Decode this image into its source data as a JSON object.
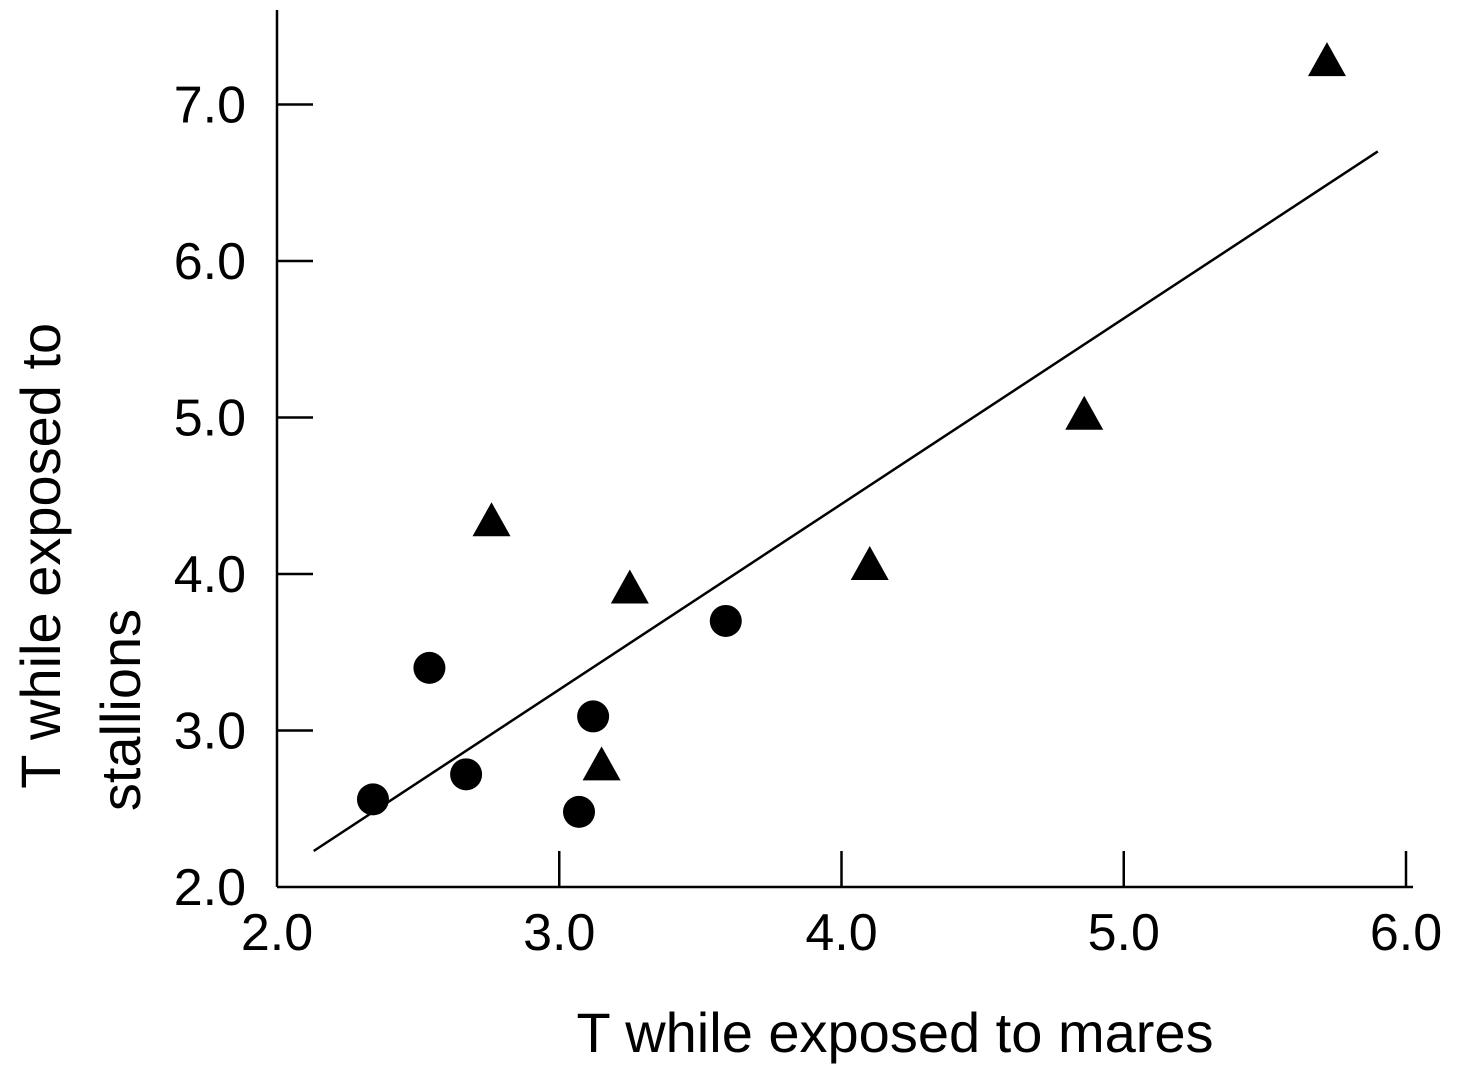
{
  "chart_data": {
    "type": "scatter",
    "title": "",
    "xlabel": "T while exposed to mares",
    "ylabel_lines": [
      "T while exposed to",
      "stallions"
    ],
    "xlim": [
      2.0,
      6.0
    ],
    "ylim": [
      2.0,
      7.6
    ],
    "x_ticks": [
      2.0,
      3.0,
      4.0,
      5.0,
      6.0
    ],
    "x_tick_labels": [
      "2.0",
      "3.0",
      "4.0",
      "5.0",
      "6.0"
    ],
    "y_ticks": [
      2.0,
      3.0,
      4.0,
      5.0,
      6.0,
      7.0
    ],
    "y_tick_labels": [
      "2.0",
      "3.0",
      "4.0",
      "5.0",
      "6.0",
      "7.0"
    ],
    "grid": false,
    "series": [
      {
        "marker": "circle",
        "color": "#000000",
        "points": [
          {
            "x": 2.34,
            "y": 2.56
          },
          {
            "x": 2.54,
            "y": 3.4
          },
          {
            "x": 2.67,
            "y": 2.72
          },
          {
            "x": 3.07,
            "y": 2.48
          },
          {
            "x": 3.12,
            "y": 3.09
          },
          {
            "x": 3.59,
            "y": 3.7
          }
        ]
      },
      {
        "marker": "triangle",
        "color": "#000000",
        "points": [
          {
            "x": 2.76,
            "y": 4.35
          },
          {
            "x": 3.15,
            "y": 2.79
          },
          {
            "x": 3.25,
            "y": 3.92
          },
          {
            "x": 4.1,
            "y": 4.07
          },
          {
            "x": 4.86,
            "y": 5.03
          },
          {
            "x": 5.72,
            "y": 7.29
          }
        ]
      }
    ],
    "trendline": {
      "x1": 2.13,
      "y1": 2.23,
      "x2": 5.9,
      "y2": 6.7
    }
  }
}
